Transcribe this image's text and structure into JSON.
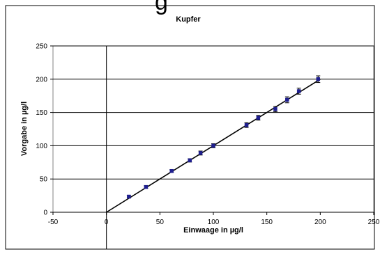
{
  "chart_data": {
    "type": "scatter",
    "title": "Kupfer",
    "xlabel": "Einwaage in µg/l",
    "ylabel": "Vorgabe in µg/l",
    "xlim": [
      -50,
      250
    ],
    "ylim": [
      0,
      250
    ],
    "xticks": [
      -50,
      0,
      50,
      100,
      150,
      200,
      250
    ],
    "yticks": [
      0,
      50,
      100,
      150,
      200,
      250
    ],
    "grid": true,
    "series": [
      {
        "marker_color": "#1f1f8f",
        "points": [
          {
            "x": 21,
            "y": 23.5,
            "err": 2
          },
          {
            "x": 37,
            "y": 38,
            "err": 2
          },
          {
            "x": 61,
            "y": 62,
            "err": 2
          },
          {
            "x": 78,
            "y": 78,
            "err": 2.5
          },
          {
            "x": 88,
            "y": 89,
            "err": 3
          },
          {
            "x": 100,
            "y": 100,
            "err": 3
          },
          {
            "x": 131,
            "y": 131,
            "err": 3.5
          },
          {
            "x": 142,
            "y": 142,
            "err": 3.5
          },
          {
            "x": 158,
            "y": 155,
            "err": 4
          },
          {
            "x": 169,
            "y": 169,
            "err": 4.5
          },
          {
            "x": 180,
            "y": 182,
            "err": 4.5
          },
          {
            "x": 198,
            "y": 200,
            "err": 5
          }
        ]
      }
    ],
    "trendline": {
      "x": [
        0,
        200
      ],
      "y": [
        0,
        200
      ],
      "color": "#000000"
    }
  }
}
